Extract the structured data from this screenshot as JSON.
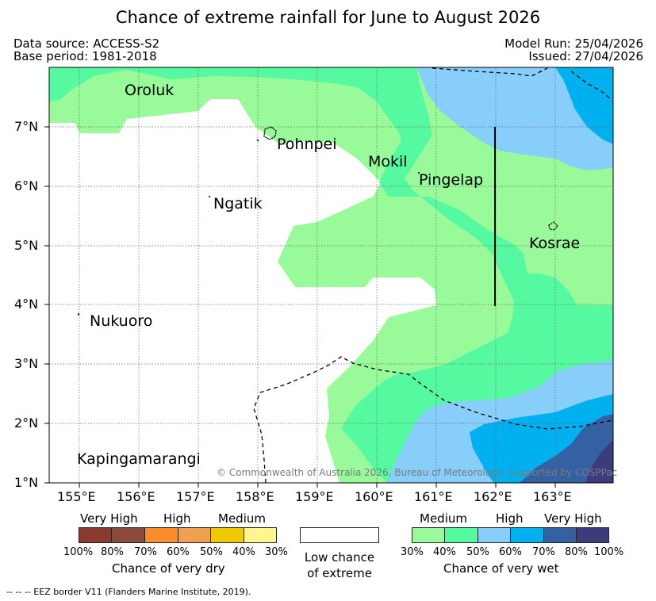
{
  "title": "Chance of extreme rainfall for June to August 2026",
  "meta": {
    "data_source": "Data source: ACCESS-S2",
    "base_period": "Base period: 1981-2018",
    "model_run": "Model Run: 25/04/2026",
    "issued": "Issued: 27/04/2026"
  },
  "map": {
    "lat_ticks": [
      "7°N",
      "6°N",
      "5°N",
      "4°N",
      "3°N",
      "2°N",
      "1°N"
    ],
    "lon_ticks": [
      "155°E",
      "156°E",
      "157°E",
      "158°E",
      "159°E",
      "160°E",
      "161°E",
      "162°E",
      "163°E"
    ],
    "places": {
      "oroluk": "Oroluk",
      "pohnpei": "Pohnpei",
      "mokil": "Mokil",
      "pingelap": "Pingelap",
      "ngatik": "Ngatik",
      "kosrae": "Kosrae",
      "nukuoro": "Nukuoro",
      "kapingamarangi": "Kapingamarangi"
    },
    "copyright": "© Commonwealth of Australia 2026, Bureau of Meteorology, supported by COSPPac",
    "colors": {
      "wet_30": "#98fa98",
      "wet_40": "#55f9a0",
      "wet_50": "#87cefa",
      "wet_60": "#00b0ef",
      "wet_70": "#3361a3",
      "wet_80": "#3c3c7c"
    }
  },
  "legend": {
    "dry": {
      "headers": [
        "Very High",
        "High",
        "Medium"
      ],
      "percents": [
        "100%",
        "80%",
        "70%",
        "60%",
        "50%",
        "40%",
        "30%"
      ],
      "title": "Chance of very dry",
      "colors": [
        "#8b3a2f",
        "#8a4a3a",
        "#ff8c2a",
        "#f0a050",
        "#efc800",
        "#fff68f"
      ]
    },
    "neutral": {
      "line1": "Low chance",
      "line2": "of extreme"
    },
    "wet": {
      "headers": [
        "Medium",
        "High",
        "Very High"
      ],
      "percents": [
        "30%",
        "40%",
        "50%",
        "60%",
        "70%",
        "80%",
        "100%"
      ],
      "title": "Chance of very wet",
      "colors": [
        "#98fa98",
        "#55f9a0",
        "#87cefa",
        "#00b0ef",
        "#3361a3",
        "#3c3c7c"
      ]
    }
  },
  "footnote": "-- -- -- EEZ border V11 (Flanders Marine Institute, 2019)."
}
